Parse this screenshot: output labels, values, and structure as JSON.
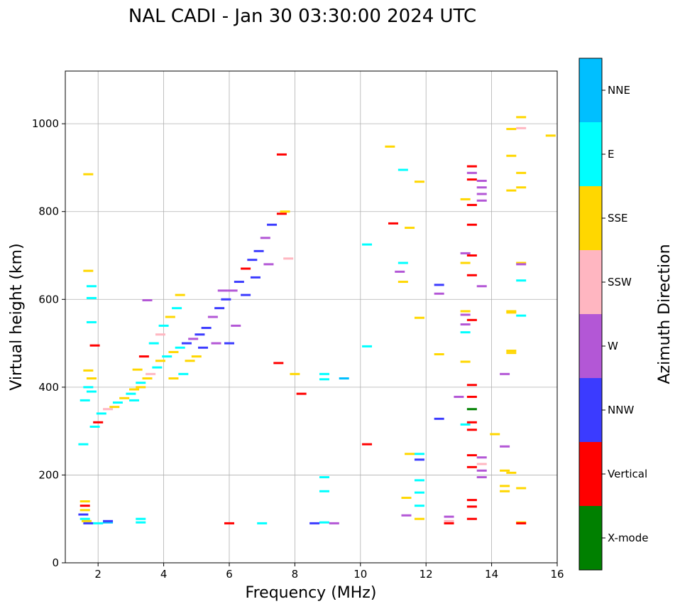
{
  "chart_data": {
    "type": "scatter",
    "title": "NAL CADI - Jan 30 03:30:00 2024 UTC",
    "xlabel": "Frequency (MHz)",
    "ylabel": "Virtual height (km)",
    "xlim": [
      1,
      16
    ],
    "ylim": [
      0,
      1120
    ],
    "xticks": [
      "2",
      "4",
      "6",
      "8",
      "10",
      "12",
      "14",
      "16"
    ],
    "yticks": [
      "0",
      "200",
      "400",
      "600",
      "800",
      "1000"
    ],
    "grid": true,
    "colorbar": {
      "label": "Azimuth Direction",
      "categories": [
        {
          "name": "X-mode",
          "color": "#008000"
        },
        {
          "name": "Vertical",
          "color": "#ff0000"
        },
        {
          "name": "NNW",
          "color": "#3b3bff"
        },
        {
          "name": "W",
          "color": "#b357d6"
        },
        {
          "name": "SSW",
          "color": "#ffb6c1"
        },
        {
          "name": "SSE",
          "color": "#ffd700"
        },
        {
          "name": "E",
          "color": "#00ffff"
        },
        {
          "name": "NNE",
          "color": "#00bfff"
        }
      ]
    },
    "points": [
      {
        "x": 1.6,
        "y": 140,
        "c": "SSE"
      },
      {
        "x": 1.6,
        "y": 130,
        "c": "Vertical"
      },
      {
        "x": 1.6,
        "y": 120,
        "c": "SSE"
      },
      {
        "x": 1.55,
        "y": 110,
        "c": "NNW"
      },
      {
        "x": 1.6,
        "y": 100,
        "c": "E"
      },
      {
        "x": 1.65,
        "y": 95,
        "c": "SSE"
      },
      {
        "x": 1.7,
        "y": 90,
        "c": "NNW"
      },
      {
        "x": 1.55,
        "y": 270,
        "c": "E"
      },
      {
        "x": 1.7,
        "y": 885,
        "c": "SSE"
      },
      {
        "x": 1.7,
        "y": 665,
        "c": "SSE"
      },
      {
        "x": 1.8,
        "y": 630,
        "c": "E"
      },
      {
        "x": 1.8,
        "y": 603,
        "c": "E"
      },
      {
        "x": 1.8,
        "y": 548,
        "c": "E"
      },
      {
        "x": 1.7,
        "y": 438,
        "c": "SSE"
      },
      {
        "x": 1.8,
        "y": 420,
        "c": "SSE"
      },
      {
        "x": 1.7,
        "y": 400,
        "c": "E"
      },
      {
        "x": 1.8,
        "y": 390,
        "c": "E"
      },
      {
        "x": 1.6,
        "y": 370,
        "c": "E"
      },
      {
        "x": 1.9,
        "y": 495,
        "c": "Vertical"
      },
      {
        "x": 2.0,
        "y": 90,
        "c": "E"
      },
      {
        "x": 2.3,
        "y": 92,
        "c": "NNE"
      },
      {
        "x": 2.3,
        "y": 95,
        "c": "NNW"
      },
      {
        "x": 1.9,
        "y": 310,
        "c": "E"
      },
      {
        "x": 2.0,
        "y": 320,
        "c": "Vertical"
      },
      {
        "x": 2.1,
        "y": 340,
        "c": "E"
      },
      {
        "x": 2.3,
        "y": 350,
        "c": "SSW"
      },
      {
        "x": 2.5,
        "y": 355,
        "c": "SSE"
      },
      {
        "x": 2.6,
        "y": 365,
        "c": "E"
      },
      {
        "x": 2.8,
        "y": 375,
        "c": "SSE"
      },
      {
        "x": 3.0,
        "y": 385,
        "c": "E"
      },
      {
        "x": 3.1,
        "y": 395,
        "c": "SSE"
      },
      {
        "x": 3.3,
        "y": 410,
        "c": "E"
      },
      {
        "x": 3.5,
        "y": 420,
        "c": "SSE"
      },
      {
        "x": 3.6,
        "y": 430,
        "c": "SSW"
      },
      {
        "x": 3.8,
        "y": 445,
        "c": "E"
      },
      {
        "x": 3.9,
        "y": 460,
        "c": "SSE"
      },
      {
        "x": 4.1,
        "y": 470,
        "c": "E"
      },
      {
        "x": 4.3,
        "y": 480,
        "c": "SSE"
      },
      {
        "x": 4.5,
        "y": 490,
        "c": "E"
      },
      {
        "x": 4.7,
        "y": 500,
        "c": "NNW"
      },
      {
        "x": 4.9,
        "y": 510,
        "c": "W"
      },
      {
        "x": 5.1,
        "y": 520,
        "c": "NNW"
      },
      {
        "x": 5.3,
        "y": 535,
        "c": "NNW"
      },
      {
        "x": 5.5,
        "y": 560,
        "c": "W"
      },
      {
        "x": 5.7,
        "y": 580,
        "c": "NNW"
      },
      {
        "x": 5.9,
        "y": 600,
        "c": "NNW"
      },
      {
        "x": 6.1,
        "y": 620,
        "c": "W"
      },
      {
        "x": 6.3,
        "y": 640,
        "c": "NNW"
      },
      {
        "x": 6.5,
        "y": 670,
        "c": "Vertical"
      },
      {
        "x": 6.7,
        "y": 690,
        "c": "NNW"
      },
      {
        "x": 6.9,
        "y": 710,
        "c": "NNW"
      },
      {
        "x": 7.1,
        "y": 740,
        "c": "W"
      },
      {
        "x": 7.3,
        "y": 770,
        "c": "NNW"
      },
      {
        "x": 7.6,
        "y": 795,
        "c": "Vertical"
      },
      {
        "x": 7.7,
        "y": 800,
        "c": "SSE"
      },
      {
        "x": 7.6,
        "y": 930,
        "c": "Vertical"
      },
      {
        "x": 6.0,
        "y": 90,
        "c": "Vertical"
      },
      {
        "x": 7.0,
        "y": 90,
        "c": "E"
      },
      {
        "x": 3.3,
        "y": 92,
        "c": "E"
      },
      {
        "x": 3.3,
        "y": 100,
        "c": "E"
      },
      {
        "x": 3.2,
        "y": 440,
        "c": "SSE"
      },
      {
        "x": 3.3,
        "y": 400,
        "c": "SSE"
      },
      {
        "x": 3.1,
        "y": 370,
        "c": "E"
      },
      {
        "x": 3.4,
        "y": 470,
        "c": "Vertical"
      },
      {
        "x": 3.7,
        "y": 500,
        "c": "E"
      },
      {
        "x": 3.9,
        "y": 520,
        "c": "SSW"
      },
      {
        "x": 4.0,
        "y": 540,
        "c": "E"
      },
      {
        "x": 4.2,
        "y": 560,
        "c": "SSE"
      },
      {
        "x": 4.4,
        "y": 580,
        "c": "E"
      },
      {
        "x": 4.5,
        "y": 610,
        "c": "SSE"
      },
      {
        "x": 3.5,
        "y": 598,
        "c": "W"
      },
      {
        "x": 4.6,
        "y": 430,
        "c": "E"
      },
      {
        "x": 4.3,
        "y": 420,
        "c": "SSE"
      },
      {
        "x": 4.8,
        "y": 460,
        "c": "SSE"
      },
      {
        "x": 5.0,
        "y": 470,
        "c": "SSE"
      },
      {
        "x": 5.2,
        "y": 490,
        "c": "NNW"
      },
      {
        "x": 5.6,
        "y": 500,
        "c": "W"
      },
      {
        "x": 6.0,
        "y": 500,
        "c": "NNW"
      },
      {
        "x": 6.2,
        "y": 540,
        "c": "W"
      },
      {
        "x": 5.8,
        "y": 620,
        "c": "W"
      },
      {
        "x": 6.5,
        "y": 610,
        "c": "NNW"
      },
      {
        "x": 6.8,
        "y": 650,
        "c": "NNW"
      },
      {
        "x": 7.2,
        "y": 680,
        "c": "W"
      },
      {
        "x": 7.8,
        "y": 693,
        "c": "SSW"
      },
      {
        "x": 7.5,
        "y": 455,
        "c": "Vertical"
      },
      {
        "x": 8.0,
        "y": 430,
        "c": "SSE"
      },
      {
        "x": 8.2,
        "y": 385,
        "c": "Vertical"
      },
      {
        "x": 8.9,
        "y": 430,
        "c": "E"
      },
      {
        "x": 8.9,
        "y": 418,
        "c": "E"
      },
      {
        "x": 9.5,
        "y": 420,
        "c": "NNE"
      },
      {
        "x": 8.9,
        "y": 195,
        "c": "E"
      },
      {
        "x": 8.9,
        "y": 163,
        "c": "E"
      },
      {
        "x": 8.9,
        "y": 92,
        "c": "E"
      },
      {
        "x": 8.6,
        "y": 90,
        "c": "NNW"
      },
      {
        "x": 9.2,
        "y": 90,
        "c": "W"
      },
      {
        "x": 10.2,
        "y": 493,
        "c": "E"
      },
      {
        "x": 10.2,
        "y": 725,
        "c": "E"
      },
      {
        "x": 10.2,
        "y": 270,
        "c": "Vertical"
      },
      {
        "x": 10.9,
        "y": 948,
        "c": "SSE"
      },
      {
        "x": 11.0,
        "y": 773,
        "c": "Vertical"
      },
      {
        "x": 11.3,
        "y": 895,
        "c": "E"
      },
      {
        "x": 11.5,
        "y": 763,
        "c": "SSE"
      },
      {
        "x": 11.3,
        "y": 683,
        "c": "E"
      },
      {
        "x": 11.2,
        "y": 663,
        "c": "W"
      },
      {
        "x": 11.3,
        "y": 640,
        "c": "SSE"
      },
      {
        "x": 11.8,
        "y": 868,
        "c": "SSE"
      },
      {
        "x": 11.8,
        "y": 558,
        "c": "SSE"
      },
      {
        "x": 11.5,
        "y": 248,
        "c": "SSE"
      },
      {
        "x": 11.8,
        "y": 248,
        "c": "E"
      },
      {
        "x": 11.8,
        "y": 235,
        "c": "NNW"
      },
      {
        "x": 11.8,
        "y": 188,
        "c": "E"
      },
      {
        "x": 11.8,
        "y": 160,
        "c": "E"
      },
      {
        "x": 11.4,
        "y": 148,
        "c": "SSE"
      },
      {
        "x": 11.8,
        "y": 130,
        "c": "E"
      },
      {
        "x": 11.4,
        "y": 108,
        "c": "W"
      },
      {
        "x": 11.8,
        "y": 100,
        "c": "SSE"
      },
      {
        "x": 12.4,
        "y": 633,
        "c": "NNW"
      },
      {
        "x": 12.4,
        "y": 613,
        "c": "W"
      },
      {
        "x": 12.4,
        "y": 475,
        "c": "SSE"
      },
      {
        "x": 12.4,
        "y": 328,
        "c": "NNW"
      },
      {
        "x": 12.7,
        "y": 105,
        "c": "W"
      },
      {
        "x": 12.7,
        "y": 95,
        "c": "SSW"
      },
      {
        "x": 12.7,
        "y": 90,
        "c": "Vertical"
      },
      {
        "x": 13.2,
        "y": 828,
        "c": "SSE"
      },
      {
        "x": 13.2,
        "y": 705,
        "c": "W"
      },
      {
        "x": 13.2,
        "y": 683,
        "c": "SSE"
      },
      {
        "x": 13.2,
        "y": 573,
        "c": "SSE"
      },
      {
        "x": 13.2,
        "y": 565,
        "c": "W"
      },
      {
        "x": 13.2,
        "y": 543,
        "c": "W"
      },
      {
        "x": 13.2,
        "y": 525,
        "c": "E"
      },
      {
        "x": 13.2,
        "y": 458,
        "c": "SSE"
      },
      {
        "x": 13.0,
        "y": 378,
        "c": "W"
      },
      {
        "x": 13.2,
        "y": 315,
        "c": "E"
      },
      {
        "x": 13.4,
        "y": 903,
        "c": "Vertical"
      },
      {
        "x": 13.4,
        "y": 888,
        "c": "W"
      },
      {
        "x": 13.4,
        "y": 873,
        "c": "Vertical"
      },
      {
        "x": 13.4,
        "y": 815,
        "c": "Vertical"
      },
      {
        "x": 13.4,
        "y": 770,
        "c": "Vertical"
      },
      {
        "x": 13.4,
        "y": 700,
        "c": "Vertical"
      },
      {
        "x": 13.4,
        "y": 655,
        "c": "Vertical"
      },
      {
        "x": 13.4,
        "y": 553,
        "c": "Vertical"
      },
      {
        "x": 13.4,
        "y": 405,
        "c": "Vertical"
      },
      {
        "x": 13.4,
        "y": 378,
        "c": "Vertical"
      },
      {
        "x": 13.4,
        "y": 350,
        "c": "X-mode"
      },
      {
        "x": 13.4,
        "y": 320,
        "c": "Vertical"
      },
      {
        "x": 13.4,
        "y": 303,
        "c": "Vertical"
      },
      {
        "x": 13.4,
        "y": 245,
        "c": "Vertical"
      },
      {
        "x": 13.4,
        "y": 218,
        "c": "Vertical"
      },
      {
        "x": 13.4,
        "y": 143,
        "c": "Vertical"
      },
      {
        "x": 13.4,
        "y": 128,
        "c": "Vertical"
      },
      {
        "x": 13.4,
        "y": 100,
        "c": "Vertical"
      },
      {
        "x": 13.7,
        "y": 870,
        "c": "W"
      },
      {
        "x": 13.7,
        "y": 855,
        "c": "W"
      },
      {
        "x": 13.7,
        "y": 840,
        "c": "W"
      },
      {
        "x": 13.7,
        "y": 825,
        "c": "W"
      },
      {
        "x": 13.7,
        "y": 630,
        "c": "W"
      },
      {
        "x": 13.7,
        "y": 240,
        "c": "W"
      },
      {
        "x": 13.7,
        "y": 210,
        "c": "W"
      },
      {
        "x": 13.7,
        "y": 195,
        "c": "W"
      },
      {
        "x": 13.7,
        "y": 225,
        "c": "SSW"
      },
      {
        "x": 14.1,
        "y": 293,
        "c": "SSE"
      },
      {
        "x": 14.4,
        "y": 430,
        "c": "W"
      },
      {
        "x": 14.4,
        "y": 265,
        "c": "W"
      },
      {
        "x": 14.4,
        "y": 210,
        "c": "SSE"
      },
      {
        "x": 14.4,
        "y": 175,
        "c": "SSE"
      },
      {
        "x": 14.4,
        "y": 163,
        "c": "SSE"
      },
      {
        "x": 14.6,
        "y": 988,
        "c": "SSE"
      },
      {
        "x": 14.6,
        "y": 927,
        "c": "SSE"
      },
      {
        "x": 14.6,
        "y": 848,
        "c": "SSE"
      },
      {
        "x": 14.6,
        "y": 573,
        "c": "SSE"
      },
      {
        "x": 14.6,
        "y": 570,
        "c": "SSE"
      },
      {
        "x": 14.6,
        "y": 483,
        "c": "SSE"
      },
      {
        "x": 14.6,
        "y": 478,
        "c": "SSE"
      },
      {
        "x": 14.6,
        "y": 205,
        "c": "SSE"
      },
      {
        "x": 14.9,
        "y": 1015,
        "c": "SSE"
      },
      {
        "x": 14.9,
        "y": 990,
        "c": "SSW"
      },
      {
        "x": 14.9,
        "y": 888,
        "c": "SSE"
      },
      {
        "x": 14.9,
        "y": 855,
        "c": "SSE"
      },
      {
        "x": 14.9,
        "y": 683,
        "c": "SSE"
      },
      {
        "x": 14.9,
        "y": 680,
        "c": "W"
      },
      {
        "x": 14.9,
        "y": 643,
        "c": "E"
      },
      {
        "x": 14.9,
        "y": 563,
        "c": "E"
      },
      {
        "x": 14.9,
        "y": 170,
        "c": "SSE"
      },
      {
        "x": 14.9,
        "y": 92,
        "c": "SSE"
      },
      {
        "x": 14.9,
        "y": 90,
        "c": "Vertical"
      },
      {
        "x": 15.8,
        "y": 973,
        "c": "SSE"
      }
    ]
  }
}
